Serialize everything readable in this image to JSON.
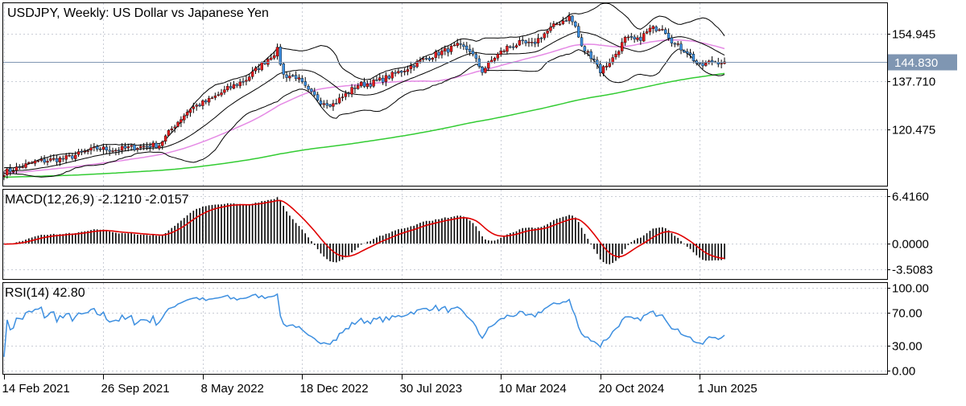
{
  "chart_data": [
    {
      "pane": "price",
      "type": "candlestick",
      "title": "USDJPY, Weekly:  US Dollar vs Japanese Yen",
      "symbol": "USDJPY",
      "timeframe": "Weekly",
      "ylim": [
        100.0,
        166.0
      ],
      "yticks": [
        {
          "value": 154.945,
          "label": "154.945"
        },
        {
          "value": 137.71,
          "label": "137.710"
        },
        {
          "value": 120.475,
          "label": "120.475"
        }
      ],
      "current_price": {
        "value": 144.83,
        "label": "144.830",
        "line_color": "#7f96b2",
        "label_bg": "#7f96b2"
      },
      "x_range_weeks": [
        0,
        232
      ],
      "close_anchors": [
        [
          0,
          104.8
        ],
        [
          10,
          108.6
        ],
        [
          20,
          110.0
        ],
        [
          30,
          113.5
        ],
        [
          36,
          113.0
        ],
        [
          42,
          113.9
        ],
        [
          50,
          114.8
        ],
        [
          55,
          122.0
        ],
        [
          60,
          128.0
        ],
        [
          66,
          130.8
        ],
        [
          72,
          135.0
        ],
        [
          78,
          138.5
        ],
        [
          84,
          145.0
        ],
        [
          88,
          149.0
        ],
        [
          90,
          140.0
        ],
        [
          94,
          139.5
        ],
        [
          98,
          134.0
        ],
        [
          102,
          130.5
        ],
        [
          106,
          129.5
        ],
        [
          110,
          133.0
        ],
        [
          114,
          136.5
        ],
        [
          118,
          137.0
        ],
        [
          122,
          138.5
        ],
        [
          128,
          141.5
        ],
        [
          134,
          145.0
        ],
        [
          140,
          148.0
        ],
        [
          146,
          150.5
        ],
        [
          150,
          149.0
        ],
        [
          154,
          141.5
        ],
        [
          158,
          146.5
        ],
        [
          162,
          150.0
        ],
        [
          166,
          151.5
        ],
        [
          170,
          151.0
        ],
        [
          174,
          155.0
        ],
        [
          178,
          158.5
        ],
        [
          182,
          161.0
        ],
        [
          184,
          157.5
        ],
        [
          186,
          150.0
        ],
        [
          190,
          146.0
        ],
        [
          192,
          141.5
        ],
        [
          196,
          146.0
        ],
        [
          200,
          153.0
        ],
        [
          204,
          152.5
        ],
        [
          208,
          156.5
        ],
        [
          212,
          157.5
        ],
        [
          216,
          151.0
        ],
        [
          220,
          148.5
        ],
        [
          224,
          143.0
        ],
        [
          228,
          145.0
        ],
        [
          232,
          144.83
        ]
      ],
      "indicators": [
        {
          "name": "Bollinger Bands (20, 2)",
          "color": "#000000"
        },
        {
          "name": "Moving Average 50",
          "color": "#e58ae5"
        },
        {
          "name": "Moving Average 200",
          "color": "#33cc33"
        }
      ],
      "candle_colors": {
        "bull": "#e41a1c",
        "bear": "#3d8fe0",
        "wick": "#000000"
      }
    },
    {
      "pane": "macd",
      "type": "histogram+line",
      "label": "MACD(12,26,9) -2.1210 -2.0157",
      "params": "12,26,9",
      "macd_value": -2.121,
      "signal_value": -2.0157,
      "ylim": [
        -4.8,
        7.3
      ],
      "yticks": [
        {
          "value": 6.416,
          "label": "6.4160"
        },
        {
          "value": 0.0,
          "label": "0.0000"
        },
        {
          "value": -3.5083,
          "label": "-3.5083"
        }
      ],
      "histogram_color": "#000000",
      "signal_color": "#e00000"
    },
    {
      "pane": "rsi",
      "type": "line",
      "label": "RSI(14) 42.80",
      "period": 14,
      "value": 42.8,
      "ylim": [
        -4.0,
        106.0
      ],
      "yticks": [
        {
          "value": 100,
          "label": "100.00"
        },
        {
          "value": 70,
          "label": "70.00"
        },
        {
          "value": 30,
          "label": "30.00"
        },
        {
          "value": 0,
          "label": "0.00"
        }
      ],
      "line_color": "#3d8fe0"
    }
  ],
  "x_axis": {
    "ticks": [
      {
        "week": 0,
        "label": "14 Feb 2021"
      },
      {
        "week": 32,
        "label": "26 Sep 2021"
      },
      {
        "week": 64,
        "label": "8 May 2022"
      },
      {
        "week": 96,
        "label": "18 Dec 2022"
      },
      {
        "week": 128,
        "label": "30 Jul 2023"
      },
      {
        "week": 160,
        "label": "10 Mar 2024"
      },
      {
        "week": 192,
        "label": "20 Oct 2024"
      },
      {
        "week": 224,
        "label": "1 Jun 2025"
      }
    ]
  },
  "colors": {
    "frame": "#000000",
    "grid": "#c9cdd6",
    "background": "#ffffff"
  }
}
